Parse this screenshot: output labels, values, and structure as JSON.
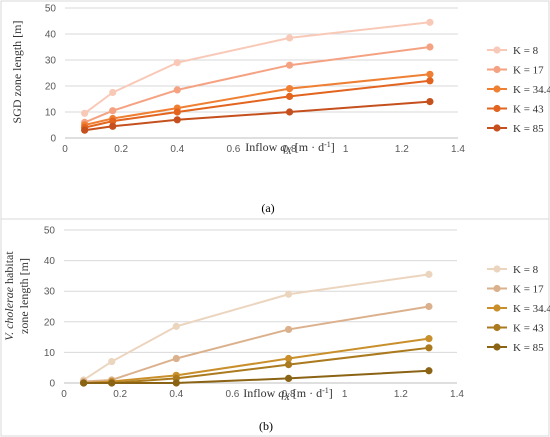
{
  "chart_data": [
    {
      "type": "line",
      "caption": "(a)",
      "ylabel": "SGD zone length [m]",
      "xlabel_parts": [
        "Inflow ",
        "q",
        "X",
        " [m · d",
        "-1",
        "]"
      ],
      "xlim": [
        0,
        1.4
      ],
      "xticks": [
        0,
        0.2,
        0.4,
        0.6,
        0.8,
        1,
        1.2,
        1.4
      ],
      "ylim": [
        0,
        50
      ],
      "yticks": [
        0,
        10,
        20,
        30,
        40,
        50
      ],
      "grid": "horizontal",
      "legend_position": "right",
      "x": [
        0.07,
        0.17,
        0.4,
        0.8,
        1.3
      ],
      "series": [
        {
          "name": "K = 8",
          "color": "#f9c9b8",
          "values": [
            9.5,
            17.5,
            29,
            38.5,
            44.5
          ]
        },
        {
          "name": "K = 17",
          "color": "#f5a283",
          "values": [
            6,
            10.5,
            18.5,
            28,
            35
          ]
        },
        {
          "name": "K = 34.4",
          "color": "#ef7f32",
          "values": [
            5,
            7.5,
            11.5,
            19,
            24.5
          ]
        },
        {
          "name": "K = 43",
          "color": "#e2641f",
          "values": [
            4,
            6.5,
            10,
            16,
            22
          ]
        },
        {
          "name": "K = 85",
          "color": "#c5501d",
          "values": [
            3,
            4.5,
            7,
            10,
            14
          ]
        }
      ]
    },
    {
      "type": "line",
      "caption": "(b)",
      "ylabel_line1_parts": [
        "V. cholerae",
        " habitat"
      ],
      "ylabel_line2": "zone length [m]",
      "xlabel_parts": [
        "Inflow ",
        "q",
        "X",
        " [m · d",
        "-1",
        "]"
      ],
      "xlim": [
        0,
        1.4
      ],
      "xticks": [
        0,
        0.2,
        0.4,
        0.6,
        0.8,
        1,
        1.2,
        1.4
      ],
      "ylim": [
        0,
        50
      ],
      "yticks": [
        0,
        10,
        20,
        30,
        40,
        50
      ],
      "grid": "horizontal",
      "legend_position": "right",
      "x": [
        0.07,
        0.17,
        0.4,
        0.8,
        1.3
      ],
      "series": [
        {
          "name": "K = 8",
          "color": "#ecd5bf",
          "values": [
            1,
            7,
            18.5,
            29,
            35.5
          ]
        },
        {
          "name": "K = 17",
          "color": "#dbb18d",
          "values": [
            0.5,
            1,
            8,
            17.5,
            25
          ]
        },
        {
          "name": "K = 34.4",
          "color": "#c98f2b",
          "values": [
            0,
            0.5,
            2.5,
            8,
            14.5
          ]
        },
        {
          "name": "K = 43",
          "color": "#ab7a1e",
          "values": [
            0,
            0,
            1.5,
            6,
            11.5
          ]
        },
        {
          "name": "K = 85",
          "color": "#8b6314",
          "values": [
            0,
            0,
            0,
            1.5,
            4
          ]
        }
      ]
    }
  ]
}
